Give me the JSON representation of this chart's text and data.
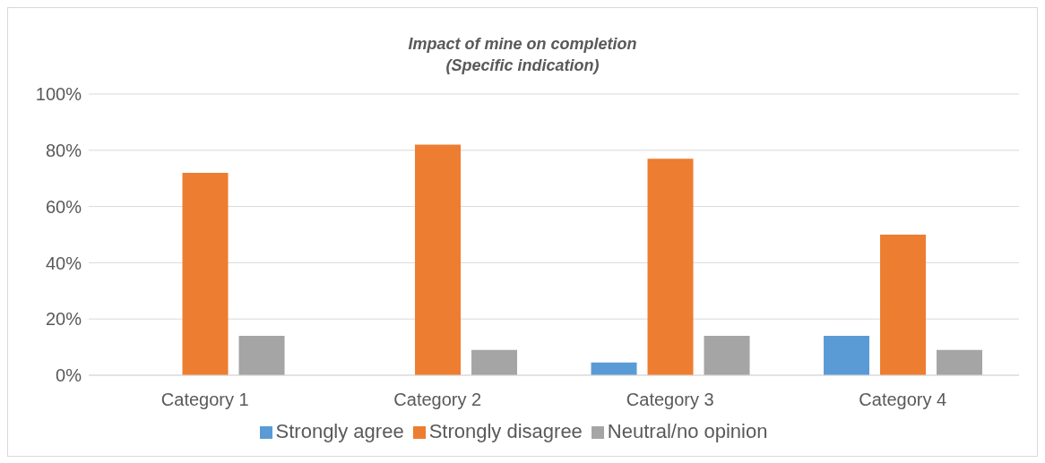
{
  "chart_data": {
    "type": "bar",
    "title": "Impact of mine on completion",
    "subtitle": "(Specific indication)",
    "categories": [
      "Category 1",
      "Category 2",
      "Category 3",
      "Category 4"
    ],
    "series": [
      {
        "name": "Strongly agree",
        "color": "#5b9bd5",
        "values": [
          0,
          0,
          4.5,
          14
        ]
      },
      {
        "name": "Strongly disagree",
        "color": "#ed7d31",
        "values": [
          72,
          82,
          77,
          50
        ]
      },
      {
        "name": "Neutral/no opinion",
        "color": "#a5a5a5",
        "values": [
          14,
          9,
          14,
          9
        ]
      }
    ],
    "ylim": [
      0,
      100
    ],
    "yticks": [
      {
        "value": 0,
        "label": "0%"
      },
      {
        "value": 20,
        "label": "20%"
      },
      {
        "value": 40,
        "label": "40%"
      },
      {
        "value": 60,
        "label": "60%"
      },
      {
        "value": 80,
        "label": "80%"
      },
      {
        "value": 100,
        "label": "100%"
      }
    ],
    "grid": "y",
    "legend": "bottom"
  }
}
